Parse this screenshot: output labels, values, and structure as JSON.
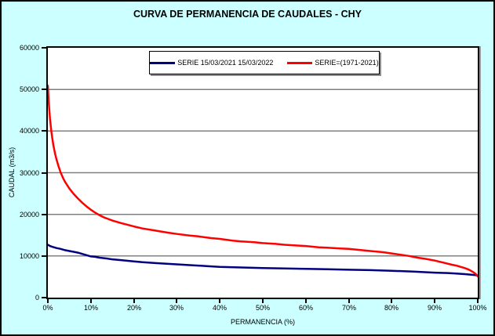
{
  "window": {
    "background_color": "#CCFFFF",
    "plot_background_color": "#FFFFFF",
    "gridline_color": "#808080"
  },
  "chart_data": {
    "type": "line",
    "title": "CURVA DE PERMANENCIA DE CAUDALES - CHY",
    "xlabel": "PERMANENCIA (%)",
    "ylabel": "CAUDAL (m3/s)",
    "xlim": [
      0,
      100
    ],
    "ylim": [
      0,
      60000
    ],
    "x_ticks_percent": [
      0,
      10,
      20,
      30,
      40,
      50,
      60,
      70,
      80,
      90,
      100
    ],
    "x_tick_labels": [
      "0%",
      "10%",
      "20%",
      "30%",
      "40%",
      "50%",
      "60%",
      "70%",
      "80%",
      "90%",
      "100%"
    ],
    "y_ticks": [
      0,
      10000,
      20000,
      30000,
      40000,
      50000,
      60000
    ],
    "grid": "horizontal",
    "legend_position": "top-center",
    "series": [
      {
        "name": "SERIE 15/03/2021 15/03/2022",
        "color": "#000080",
        "points": [
          [
            0,
            12700
          ],
          [
            0.5,
            12400
          ],
          [
            1,
            12200
          ],
          [
            2,
            11900
          ],
          [
            3,
            11700
          ],
          [
            4,
            11400
          ],
          [
            5,
            11200
          ],
          [
            6,
            11000
          ],
          [
            7,
            10800
          ],
          [
            8,
            10500
          ],
          [
            9,
            10200
          ],
          [
            10,
            9900
          ],
          [
            11,
            9800
          ],
          [
            12,
            9600
          ],
          [
            14,
            9350
          ],
          [
            15,
            9200
          ],
          [
            17,
            9000
          ],
          [
            20,
            8700
          ],
          [
            22,
            8500
          ],
          [
            25,
            8300
          ],
          [
            28,
            8100
          ],
          [
            30,
            8000
          ],
          [
            33,
            7800
          ],
          [
            35,
            7700
          ],
          [
            38,
            7500
          ],
          [
            40,
            7400
          ],
          [
            45,
            7250
          ],
          [
            50,
            7100
          ],
          [
            55,
            7000
          ],
          [
            60,
            6900
          ],
          [
            65,
            6800
          ],
          [
            70,
            6700
          ],
          [
            75,
            6600
          ],
          [
            80,
            6450
          ],
          [
            85,
            6250
          ],
          [
            90,
            6000
          ],
          [
            93,
            5900
          ],
          [
            95,
            5800
          ],
          [
            97,
            5650
          ],
          [
            99,
            5450
          ],
          [
            100,
            5350
          ]
        ]
      },
      {
        "name": "SERIE=(1971-2021)",
        "color": "#FF0000",
        "points": [
          [
            0,
            50900
          ],
          [
            0.2,
            47000
          ],
          [
            0.5,
            43000
          ],
          [
            0.8,
            40000
          ],
          [
            1,
            38500
          ],
          [
            1.3,
            36500
          ],
          [
            1.7,
            34500
          ],
          [
            2,
            33200
          ],
          [
            2.5,
            31500
          ],
          [
            3,
            30000
          ],
          [
            3.5,
            28800
          ],
          [
            4,
            27800
          ],
          [
            4.5,
            27000
          ],
          [
            5,
            26200
          ],
          [
            6,
            24900
          ],
          [
            7,
            23800
          ],
          [
            8,
            22800
          ],
          [
            9,
            21900
          ],
          [
            10,
            21100
          ],
          [
            11,
            20400
          ],
          [
            12,
            19800
          ],
          [
            13,
            19300
          ],
          [
            14,
            18900
          ],
          [
            15,
            18500
          ],
          [
            17,
            17900
          ],
          [
            20,
            17100
          ],
          [
            22,
            16600
          ],
          [
            25,
            16100
          ],
          [
            28,
            15600
          ],
          [
            30,
            15300
          ],
          [
            33,
            14900
          ],
          [
            35,
            14700
          ],
          [
            38,
            14300
          ],
          [
            40,
            14100
          ],
          [
            43,
            13700
          ],
          [
            45,
            13500
          ],
          [
            48,
            13300
          ],
          [
            50,
            13100
          ],
          [
            53,
            12900
          ],
          [
            55,
            12700
          ],
          [
            58,
            12500
          ],
          [
            60,
            12400
          ],
          [
            63,
            12100
          ],
          [
            65,
            12000
          ],
          [
            68,
            11800
          ],
          [
            70,
            11700
          ],
          [
            73,
            11400
          ],
          [
            75,
            11200
          ],
          [
            78,
            10900
          ],
          [
            80,
            10600
          ],
          [
            82,
            10300
          ],
          [
            84,
            10000
          ],
          [
            86,
            9600
          ],
          [
            88,
            9300
          ],
          [
            90,
            8900
          ],
          [
            92,
            8400
          ],
          [
            94,
            7900
          ],
          [
            95,
            7700
          ],
          [
            96,
            7400
          ],
          [
            97,
            7100
          ],
          [
            98,
            6700
          ],
          [
            99,
            6100
          ],
          [
            99.5,
            5700
          ],
          [
            100,
            5100
          ]
        ]
      }
    ]
  }
}
